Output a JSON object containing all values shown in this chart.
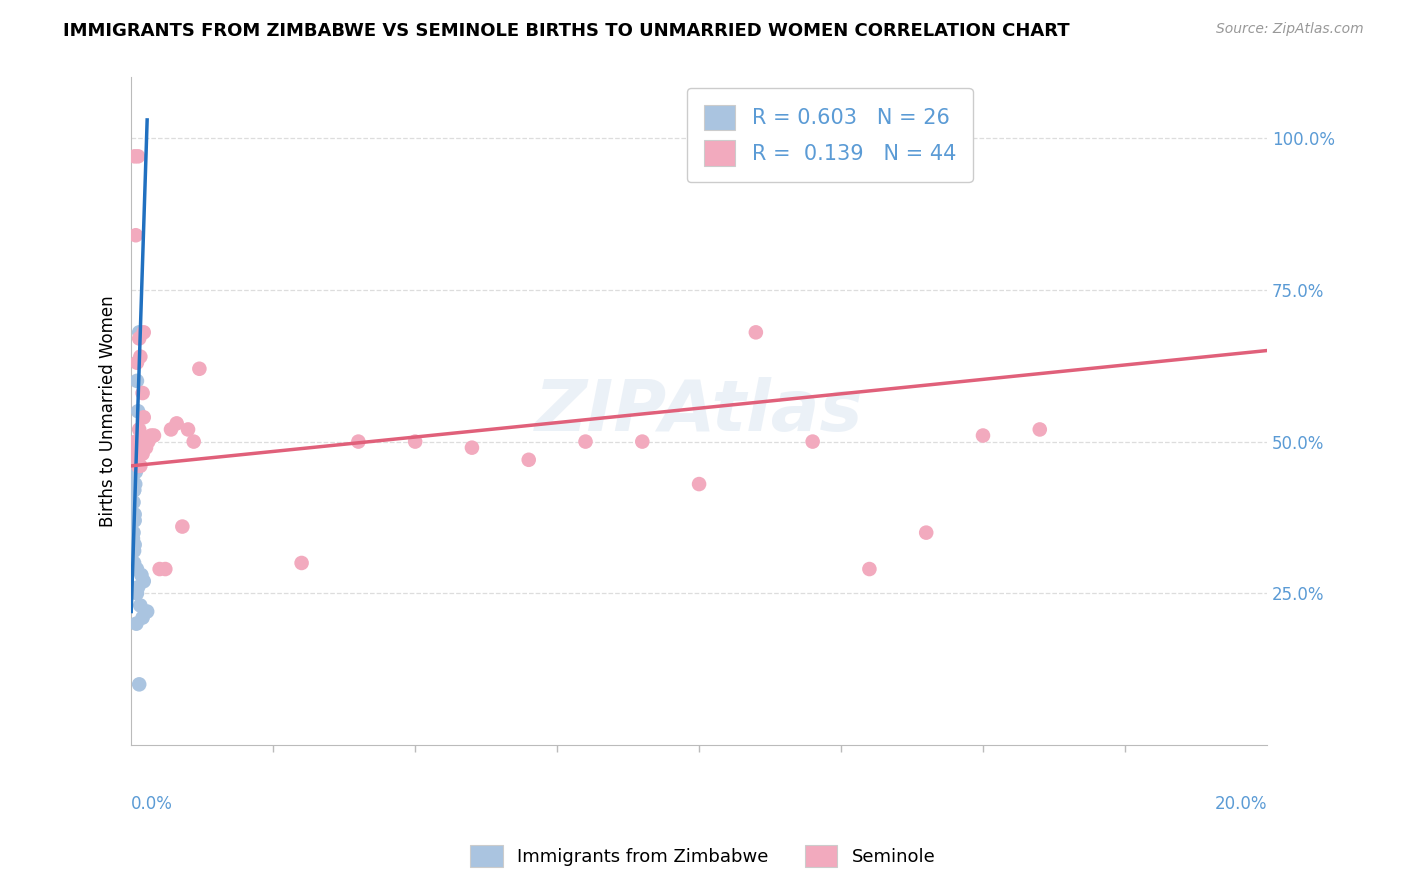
{
  "title": "IMMIGRANTS FROM ZIMBABWE VS SEMINOLE BIRTHS TO UNMARRIED WOMEN CORRELATION CHART",
  "source": "Source: ZipAtlas.com",
  "ylabel": "Births to Unmarried Women",
  "legend_labels": [
    "Immigrants from Zimbabwe",
    "Seminole"
  ],
  "legend_r": [
    "0.603",
    "0.139"
  ],
  "legend_n": [
    "26",
    "44"
  ],
  "blue_color": "#aac4e0",
  "pink_color": "#f2aabe",
  "blue_line_color": "#2070c0",
  "pink_line_color": "#e0607a",
  "blue_scatter_x": [
    0.05,
    0.14,
    0.1,
    0.12,
    0.1,
    0.08,
    0.07,
    0.05,
    0.04,
    0.06,
    0.06,
    0.04,
    0.03,
    0.06,
    0.05,
    0.05,
    0.1,
    0.18,
    0.22,
    0.12,
    0.1,
    0.16,
    0.28,
    0.2,
    0.09,
    0.14
  ],
  "blue_scatter_y": [
    42,
    68,
    60,
    55,
    50,
    45,
    43,
    42,
    40,
    38,
    37,
    35,
    34,
    33,
    32,
    30,
    29,
    28,
    27,
    26,
    25,
    23,
    22,
    21,
    20,
    10
  ],
  "pink_scatter_x": [
    0.06,
    0.12,
    0.08,
    0.14,
    0.16,
    0.1,
    0.2,
    0.22,
    0.14,
    0.08,
    0.1,
    0.1,
    0.08,
    0.12,
    0.16,
    0.2,
    0.22,
    0.24,
    0.26,
    0.3,
    0.35,
    0.4,
    0.5,
    0.6,
    0.7,
    0.8,
    0.9,
    1.0,
    1.1,
    1.2,
    3.0,
    4.0,
    5.0,
    6.0,
    7.0,
    8.0,
    9.0,
    10.0,
    11.0,
    12.0,
    13.0,
    14.0,
    15.0,
    16.0
  ],
  "pink_scatter_y": [
    97,
    97,
    84,
    67,
    64,
    63,
    58,
    54,
    52,
    50,
    49,
    48,
    47,
    46,
    46,
    48,
    68,
    50,
    49,
    50,
    51,
    51,
    29,
    29,
    52,
    53,
    36,
    52,
    50,
    62,
    30,
    50,
    50,
    49,
    47,
    50,
    50,
    43,
    68,
    50,
    29,
    35,
    51,
    52
  ],
  "blue_trendline_x": [
    0.0,
    0.28
  ],
  "blue_trendline_y": [
    22,
    103
  ],
  "pink_trendline_x": [
    0.0,
    20.0
  ],
  "pink_trendline_y": [
    46,
    65
  ],
  "xlim": [
    0.0,
    20.0
  ],
  "ylim": [
    0.0,
    110.0
  ],
  "yticks": [
    25,
    50,
    75,
    100
  ],
  "xtick_minor_positions": [
    2.5,
    5.0,
    7.5,
    10.0,
    12.5,
    15.0,
    17.5
  ]
}
